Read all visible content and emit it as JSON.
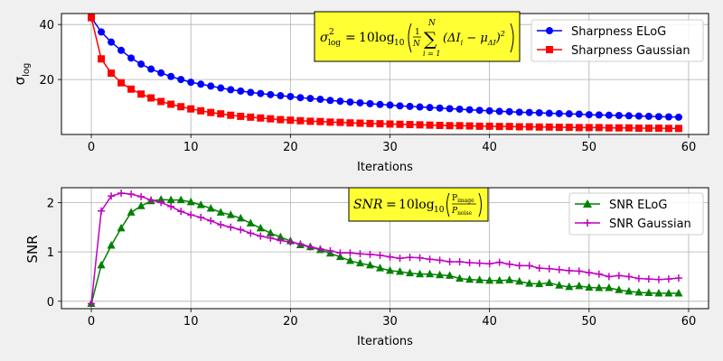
{
  "chart_data": [
    {
      "type": "line",
      "xlabel": "Iterations",
      "ylabel": "σ",
      "ylabel_sub": "log",
      "xlim": [
        -3,
        62
      ],
      "ylim": [
        0,
        44
      ],
      "xticks": [
        "0",
        "10",
        "20",
        "30",
        "40",
        "50",
        "60"
      ],
      "yticks": [
        "20",
        "40"
      ],
      "grid": true,
      "legend_position": "top-right",
      "annotation": {
        "lhs_symbol": "σ",
        "lhs_sup": "2",
        "lhs_sub": "log",
        "equals": "=",
        "prefix": "10log",
        "prefix_sub": "10",
        "frac_num": "1",
        "frac_den": "N",
        "sum_top": "N",
        "sum_symbol": "∑",
        "sum_bottom": "i = 1",
        "term": "(ΔI",
        "term_sub": "i",
        "minus": " − μ",
        "mu_sub": "ΔI",
        "term_close": ")",
        "term_sup": "2"
      },
      "series": [
        {
          "name": "Sharpness ELoG",
          "color": "#0000ff",
          "marker": "circle",
          "x": [
            0,
            1,
            2,
            3,
            4,
            5,
            6,
            7,
            8,
            9,
            10,
            11,
            12,
            13,
            14,
            15,
            16,
            17,
            18,
            19,
            20,
            21,
            22,
            23,
            24,
            25,
            26,
            27,
            28,
            29,
            30,
            31,
            32,
            33,
            34,
            35,
            36,
            37,
            38,
            39,
            40,
            41,
            42,
            43,
            44,
            45,
            46,
            47,
            48,
            49,
            50,
            51,
            52,
            53,
            54,
            55,
            56,
            57,
            58,
            59
          ],
          "values": [
            42.5,
            37.3,
            33.6,
            30.6,
            27.8,
            25.6,
            23.8,
            22.4,
            21.1,
            20.0,
            19.0,
            18.3,
            17.6,
            16.9,
            16.3,
            15.8,
            15.3,
            14.9,
            14.5,
            14.1,
            13.8,
            13.4,
            13.1,
            12.8,
            12.4,
            12.1,
            11.8,
            11.5,
            11.2,
            10.9,
            10.7,
            10.4,
            10.2,
            10.0,
            9.8,
            9.6,
            9.4,
            9.2,
            9.0,
            8.8,
            8.6,
            8.4,
            8.3,
            8.1,
            8.0,
            7.9,
            7.7,
            7.6,
            7.5,
            7.4,
            7.2,
            7.1,
            7.0,
            6.9,
            6.8,
            6.7,
            6.6,
            6.5,
            6.4,
            6.3
          ]
        },
        {
          "name": "Sharpness Gaussian",
          "color": "#ff0000",
          "marker": "square",
          "x": [
            0,
            1,
            2,
            3,
            4,
            5,
            6,
            7,
            8,
            9,
            10,
            11,
            12,
            13,
            14,
            15,
            16,
            17,
            18,
            19,
            20,
            21,
            22,
            23,
            24,
            25,
            26,
            27,
            28,
            29,
            30,
            31,
            32,
            33,
            34,
            35,
            36,
            37,
            38,
            39,
            40,
            41,
            42,
            43,
            44,
            45,
            46,
            47,
            48,
            49,
            50,
            51,
            52,
            53,
            54,
            55,
            56,
            57,
            58,
            59
          ],
          "values": [
            42.5,
            27.5,
            22.3,
            18.8,
            16.5,
            14.7,
            13.3,
            12.0,
            11.0,
            10.1,
            9.3,
            8.6,
            8.0,
            7.5,
            7.0,
            6.6,
            6.3,
            6.0,
            5.7,
            5.4,
            5.2,
            5.0,
            4.8,
            4.7,
            4.5,
            4.4,
            4.2,
            4.1,
            4.0,
            3.9,
            3.8,
            3.7,
            3.6,
            3.5,
            3.4,
            3.3,
            3.2,
            3.2,
            3.1,
            3.0,
            3.0,
            2.9,
            2.9,
            2.8,
            2.8,
            2.7,
            2.7,
            2.6,
            2.6,
            2.5,
            2.5,
            2.5,
            2.4,
            2.4,
            2.4,
            2.3,
            2.3,
            2.3,
            2.2,
            2.2
          ]
        }
      ]
    },
    {
      "type": "line",
      "xlabel": "Iterations",
      "ylabel": "SNR",
      "xlim": [
        -3,
        62
      ],
      "ylim": [
        -0.15,
        2.3
      ],
      "xticks": [
        "0",
        "10",
        "20",
        "30",
        "40",
        "50",
        "60"
      ],
      "yticks": [
        "0",
        "1",
        "2"
      ],
      "grid": true,
      "legend_position": "top-right",
      "annotation": {
        "lhs": "SNR",
        "equals": "=",
        "prefix": "10log",
        "prefix_sub": "10",
        "frac_num": "P",
        "frac_num_sub": "image",
        "frac_den": "P",
        "frac_den_sub": "noise"
      },
      "series": [
        {
          "name": "SNR ELoG",
          "color": "#008000",
          "marker": "triangle",
          "x": [
            0,
            1,
            2,
            3,
            4,
            5,
            6,
            7,
            8,
            9,
            10,
            11,
            12,
            13,
            14,
            15,
            16,
            17,
            18,
            19,
            20,
            21,
            22,
            23,
            24,
            25,
            26,
            27,
            28,
            29,
            30,
            31,
            32,
            33,
            34,
            35,
            36,
            37,
            38,
            39,
            40,
            41,
            42,
            43,
            44,
            45,
            46,
            47,
            48,
            49,
            50,
            51,
            52,
            53,
            54,
            55,
            56,
            57,
            58,
            59
          ],
          "values": [
            -0.05,
            0.73,
            1.13,
            1.48,
            1.8,
            1.93,
            2.03,
            2.06,
            2.05,
            2.05,
            2.01,
            1.95,
            1.88,
            1.8,
            1.75,
            1.68,
            1.58,
            1.48,
            1.38,
            1.3,
            1.22,
            1.14,
            1.1,
            1.04,
            0.97,
            0.9,
            0.82,
            0.77,
            0.73,
            0.67,
            0.62,
            0.6,
            0.57,
            0.55,
            0.55,
            0.53,
            0.52,
            0.46,
            0.44,
            0.43,
            0.42,
            0.42,
            0.43,
            0.4,
            0.36,
            0.35,
            0.37,
            0.32,
            0.29,
            0.31,
            0.28,
            0.27,
            0.27,
            0.23,
            0.2,
            0.18,
            0.17,
            0.16,
            0.16,
            0.16
          ]
        },
        {
          "name": "SNR Gaussian",
          "color": "#bf00bf",
          "marker": "plus",
          "x": [
            0,
            1,
            2,
            3,
            4,
            5,
            6,
            7,
            8,
            9,
            10,
            11,
            12,
            13,
            14,
            15,
            16,
            17,
            18,
            19,
            20,
            21,
            22,
            23,
            24,
            25,
            26,
            27,
            28,
            29,
            30,
            31,
            32,
            33,
            34,
            35,
            36,
            37,
            38,
            39,
            40,
            41,
            42,
            43,
            44,
            45,
            46,
            47,
            48,
            49,
            50,
            51,
            52,
            53,
            54,
            55,
            56,
            57,
            58,
            59
          ],
          "values": [
            -0.05,
            1.83,
            2.13,
            2.19,
            2.17,
            2.12,
            2.05,
            2.0,
            1.92,
            1.82,
            1.75,
            1.7,
            1.63,
            1.55,
            1.5,
            1.45,
            1.38,
            1.32,
            1.28,
            1.23,
            1.2,
            1.16,
            1.1,
            1.06,
            1.02,
            0.98,
            0.98,
            0.96,
            0.95,
            0.93,
            0.9,
            0.87,
            0.89,
            0.88,
            0.85,
            0.83,
            0.8,
            0.8,
            0.78,
            0.77,
            0.76,
            0.79,
            0.75,
            0.72,
            0.72,
            0.67,
            0.66,
            0.64,
            0.62,
            0.61,
            0.58,
            0.55,
            0.5,
            0.52,
            0.5,
            0.46,
            0.45,
            0.44,
            0.45,
            0.47
          ]
        }
      ]
    }
  ]
}
